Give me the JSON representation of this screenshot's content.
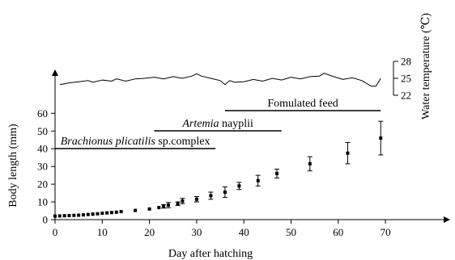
{
  "chart_data": {
    "type": "scatter",
    "xlabel": "Day after hatching",
    "ylabel": "Body length (mm)",
    "y2label": "Water temperature (℃)",
    "xlim": [
      0,
      80
    ],
    "ylim": [
      0,
      70
    ],
    "x_ticks": [
      0,
      10,
      20,
      30,
      40,
      50,
      60,
      70
    ],
    "y_ticks": [
      0,
      10,
      20,
      30,
      40,
      50,
      60
    ],
    "y2_ticks": [
      22,
      25,
      28
    ],
    "grid": false,
    "series": [
      {
        "points": [
          {
            "x": 0,
            "y": 2.0,
            "err": 0.3
          },
          {
            "x": 1,
            "y": 2.1,
            "err": 0.3
          },
          {
            "x": 2,
            "y": 2.2,
            "err": 0.3
          },
          {
            "x": 3,
            "y": 2.3,
            "err": 0.3
          },
          {
            "x": 4,
            "y": 2.4,
            "err": 0.3
          },
          {
            "x": 5,
            "y": 2.5,
            "err": 0.3
          },
          {
            "x": 6,
            "y": 2.7,
            "err": 0.3
          },
          {
            "x": 7,
            "y": 2.9,
            "err": 0.3
          },
          {
            "x": 8,
            "y": 3.1,
            "err": 0.3
          },
          {
            "x": 9,
            "y": 3.3,
            "err": 0.3
          },
          {
            "x": 10,
            "y": 3.6,
            "err": 0.3
          },
          {
            "x": 11,
            "y": 3.8,
            "err": 0.3
          },
          {
            "x": 12,
            "y": 4.0,
            "err": 0.3
          },
          {
            "x": 13,
            "y": 4.2,
            "err": 0.4
          },
          {
            "x": 14,
            "y": 4.5,
            "err": 0.4
          },
          {
            "x": 17,
            "y": 5.2,
            "err": 0.5
          },
          {
            "x": 20,
            "y": 6.0,
            "err": 0.6
          },
          {
            "x": 22,
            "y": 6.8,
            "err": 0.8
          },
          {
            "x": 23,
            "y": 7.5,
            "err": 1.0
          },
          {
            "x": 24,
            "y": 8.2,
            "err": 1.5
          },
          {
            "x": 26,
            "y": 9.0,
            "err": 1.0
          },
          {
            "x": 27,
            "y": 10.5,
            "err": 1.5
          },
          {
            "x": 30,
            "y": 11.5,
            "err": 1.5
          },
          {
            "x": 33,
            "y": 13.5,
            "err": 2.0
          },
          {
            "x": 36,
            "y": 15.5,
            "err": 3.0
          },
          {
            "x": 39,
            "y": 19.0,
            "err": 2.0
          },
          {
            "x": 43,
            "y": 22.0,
            "err": 3.0
          },
          {
            "x": 47,
            "y": 26.0,
            "err": 2.5
          },
          {
            "x": 54,
            "y": 31.5,
            "err": 4.0
          },
          {
            "x": 62,
            "y": 37.5,
            "err": 6.0
          },
          {
            "x": 69,
            "y": 46.0,
            "err": 9.5
          }
        ]
      }
    ],
    "feeding_periods": [
      {
        "label_italic": "Brachionus plicatilis",
        "label_rest": " sp.complex",
        "start": 0,
        "end": 34
      },
      {
        "label_italic": "Artemia",
        "label_rest": " nayplii",
        "start": 21,
        "end": 48
      },
      {
        "label_italic": "",
        "label_rest": "Fomulated feed",
        "start": 36,
        "end": 69
      }
    ],
    "temperature": {
      "x": [
        1,
        3,
        5,
        7,
        8,
        10,
        12,
        13,
        15,
        17,
        19,
        21,
        23,
        25,
        27,
        29,
        30,
        31,
        33,
        35,
        36,
        37,
        38,
        40,
        42,
        44,
        46,
        48,
        50,
        52,
        54,
        56,
        57,
        59,
        61,
        63,
        65,
        67,
        68,
        69
      ],
      "y": [
        23.9,
        24.2,
        24.4,
        24.6,
        24.3,
        24.7,
        24.5,
        24.9,
        24.5,
        24.9,
        25.0,
        25.2,
        24.9,
        25.3,
        25.0,
        25.4,
        25.8,
        25.4,
        25.0,
        24.6,
        23.9,
        24.6,
        24.3,
        24.4,
        24.8,
        24.5,
        25.0,
        24.7,
        25.2,
        24.9,
        25.3,
        25.4,
        25.9,
        25.3,
        24.8,
        25.1,
        24.6,
        23.6,
        23.6,
        25.0
      ]
    }
  }
}
